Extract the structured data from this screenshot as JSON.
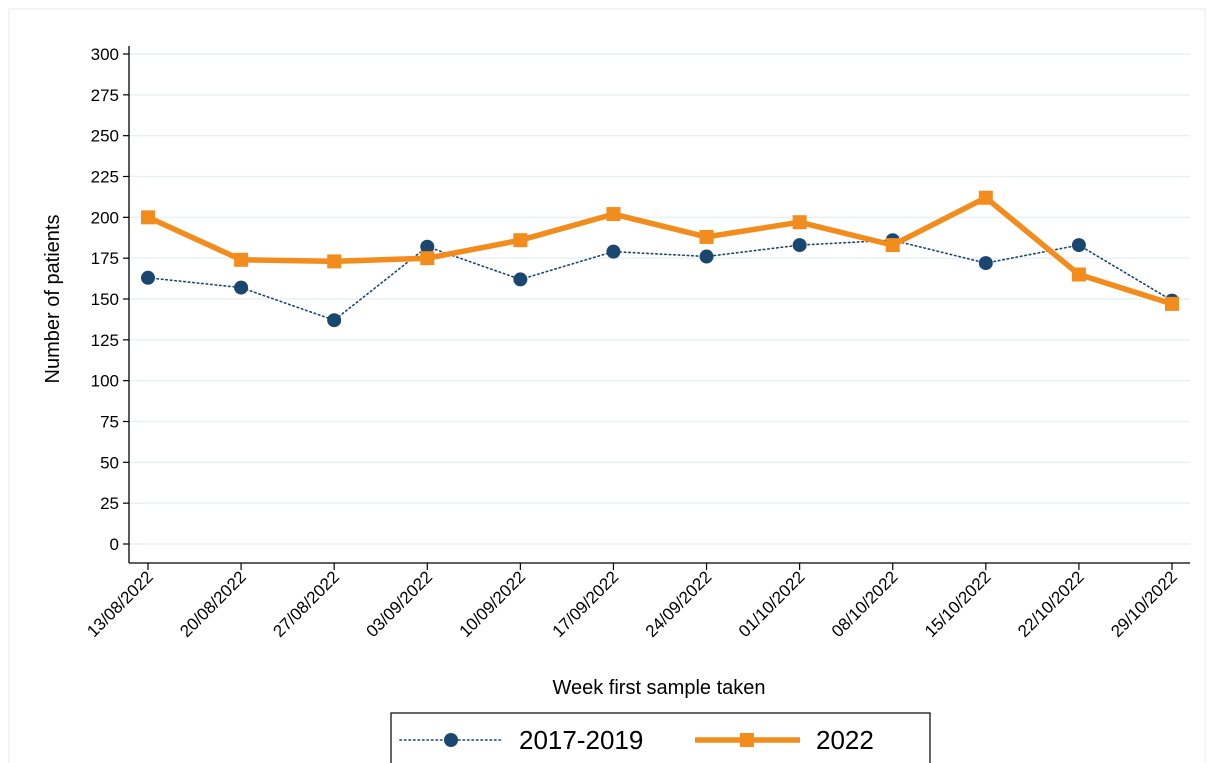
{
  "chart_data": {
    "type": "line",
    "xlabel": "Week first sample taken",
    "ylabel": "Number of patients",
    "ylim": [
      0,
      300
    ],
    "yticks": [
      0,
      25,
      50,
      75,
      100,
      125,
      150,
      175,
      200,
      225,
      250,
      275,
      300
    ],
    "grid": true,
    "legend_position": "bottom",
    "categories": [
      "13/08/2022",
      "20/08/2022",
      "27/08/2022",
      "03/09/2022",
      "10/09/2022",
      "17/09/2022",
      "24/09/2022",
      "01/10/2022",
      "08/10/2022",
      "15/10/2022",
      "22/10/2022",
      "29/10/2022"
    ],
    "series": [
      {
        "name": "2017-2019",
        "color": "#1a476f",
        "marker": "circle",
        "line_style": "dotted",
        "values": [
          163,
          157,
          137,
          182,
          162,
          179,
          176,
          183,
          186,
          172,
          183,
          149
        ]
      },
      {
        "name": "2022",
        "color": "#f28c1c",
        "marker": "square",
        "line_style": "solid",
        "values": [
          200,
          174,
          173,
          175,
          186,
          202,
          188,
          197,
          183,
          212,
          165,
          147
        ]
      }
    ]
  }
}
